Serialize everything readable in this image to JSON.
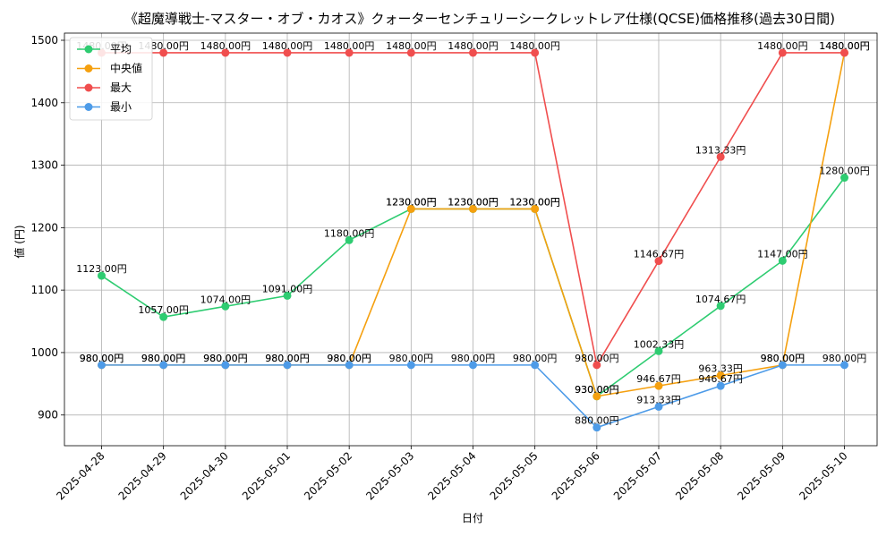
{
  "chart_data": {
    "type": "line",
    "title": "《超魔導戦士-マスター・オブ・カオス》クォーターセンチュリーシークレットレア仕様(QCSE)価格推移(過去30日間)",
    "xlabel": "日付",
    "ylabel": "値 (円)",
    "ylim": [
      850,
      1505
    ],
    "yticks": [
      900,
      1000,
      1100,
      1200,
      1300,
      1400,
      1500
    ],
    "grid": true,
    "legend_position": "top-left",
    "categories": [
      "2025-04-28",
      "2025-04-29",
      "2025-04-30",
      "2025-05-01",
      "2025-05-02",
      "2025-05-03",
      "2025-05-04",
      "2025-05-05",
      "2025-05-06",
      "2025-05-07",
      "2025-05-08",
      "2025-05-09",
      "2025-05-10"
    ],
    "series": [
      {
        "name": "平均",
        "color": "#2ecc71",
        "values": [
          1123.0,
          1057.0,
          1074.0,
          1091.0,
          1180.0,
          1230.0,
          1230.0,
          1230.0,
          930.0,
          1002.33,
          1074.67,
          1147.0,
          1280.0
        ],
        "labels": [
          "1123.00円",
          "1057.00円",
          "1074.00円",
          "1091.00円",
          "1180.00円",
          "1230.00円",
          "1230.00円",
          "1230.00円",
          "930.00円",
          "1002.33円",
          "1074.67円",
          "1147.00円",
          "1280.00円"
        ]
      },
      {
        "name": "中央値",
        "color": "#f5a00f",
        "values": [
          980.0,
          980.0,
          980.0,
          980.0,
          980.0,
          1230.0,
          1230.0,
          1230.0,
          930.0,
          946.67,
          963.33,
          980.0,
          1480.0
        ],
        "labels": [
          "980.00円",
          "980.00円",
          "980.00円",
          "980.00円",
          "980.00円",
          "1230.00円",
          "1230.00円",
          "1230.00円",
          "930.00円",
          "946.67円",
          "963.33円",
          "980.00円",
          "1480.00円"
        ]
      },
      {
        "name": "最大",
        "color": "#f04e4e",
        "values": [
          1480.0,
          1480.0,
          1480.0,
          1480.0,
          1480.0,
          1480.0,
          1480.0,
          1480.0,
          980.0,
          1146.67,
          1313.33,
          1480.0,
          1480.0
        ],
        "labels": [
          "1480.00円",
          "1480.00円",
          "1480.00円",
          "1480.00円",
          "1480.00円",
          "1480.00円",
          "1480.00円",
          "1480.00円",
          "980.00円",
          "1146.67円",
          "1313.33円",
          "1480.00円",
          "1480.00円"
        ]
      },
      {
        "name": "最小",
        "color": "#4d9be8",
        "values": [
          980.0,
          980.0,
          980.0,
          980.0,
          980.0,
          980.0,
          980.0,
          980.0,
          880.0,
          913.33,
          946.67,
          980.0,
          980.0
        ],
        "labels": [
          "980.00円",
          "980.00円",
          "980.00円",
          "980.00円",
          "980.00円",
          "980.00円",
          "980.00円",
          "980.00円",
          "880.00円",
          "913.33円",
          "946.67円",
          "980.00円",
          "980.00円"
        ]
      }
    ]
  }
}
